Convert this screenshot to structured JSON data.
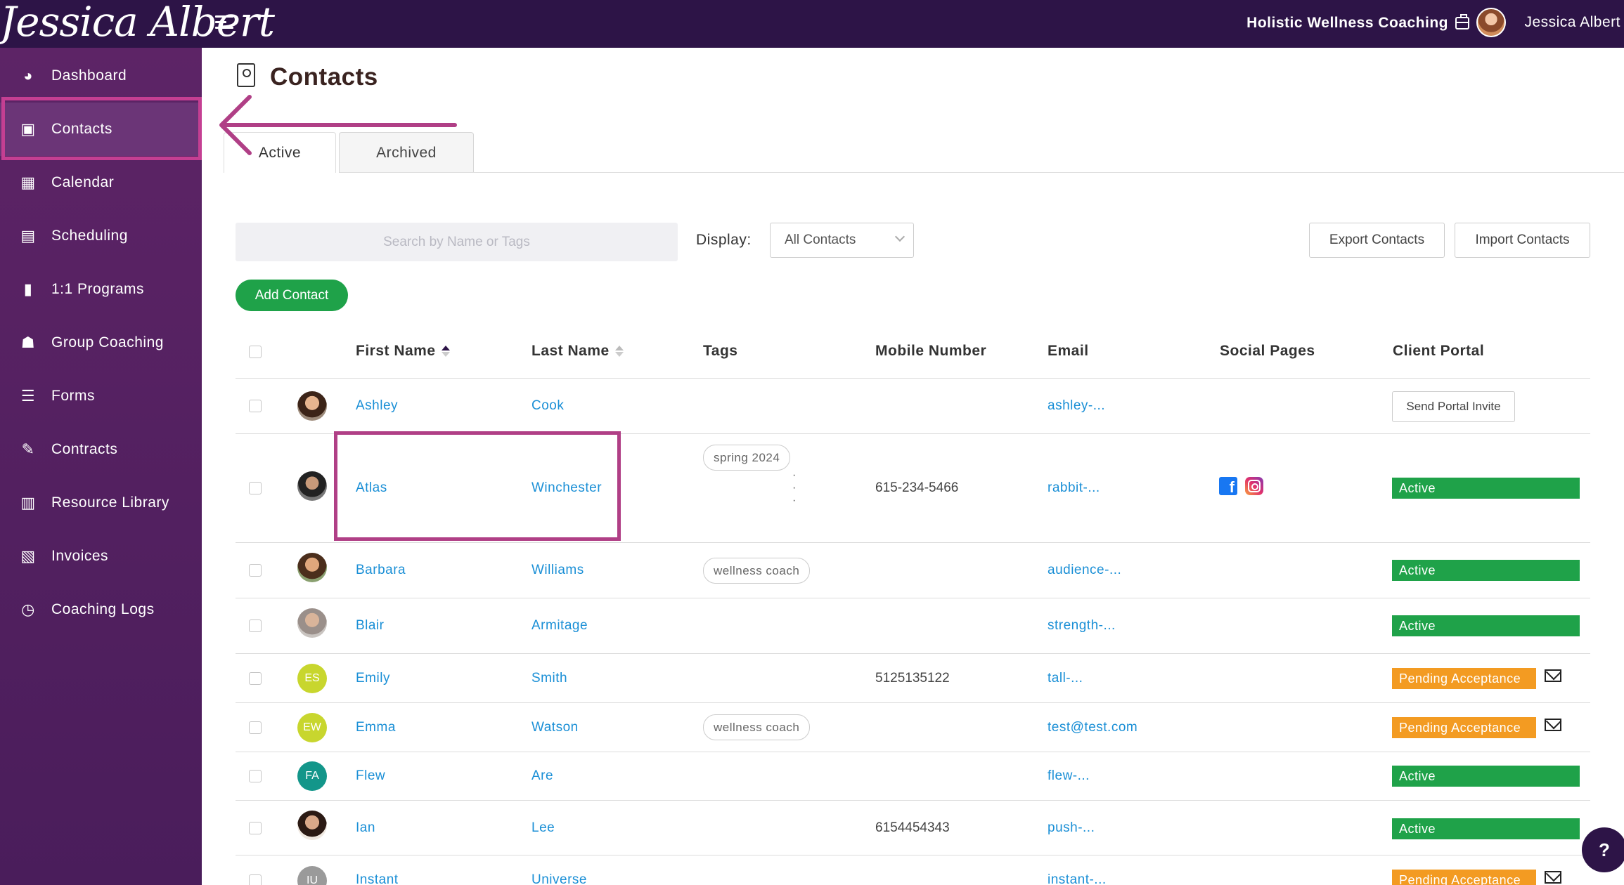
{
  "app": {
    "logo_text": "Jessica Albert",
    "business_name": "Holistic Wellness Coaching",
    "user_name": "Jessica Albert"
  },
  "sidebar": {
    "items": [
      {
        "label": "Dashboard",
        "icon": "dashboard-icon"
      },
      {
        "label": "Contacts",
        "icon": "contacts-icon"
      },
      {
        "label": "Calendar",
        "icon": "calendar-icon"
      },
      {
        "label": "Scheduling",
        "icon": "scheduling-icon"
      },
      {
        "label": "1:1 Programs",
        "icon": "book-icon"
      },
      {
        "label": "Group Coaching",
        "icon": "group-icon"
      },
      {
        "label": "Forms",
        "icon": "forms-icon"
      },
      {
        "label": "Contracts",
        "icon": "contract-icon"
      },
      {
        "label": "Resource Library",
        "icon": "library-icon"
      },
      {
        "label": "Invoices",
        "icon": "invoice-icon"
      },
      {
        "label": "Coaching Logs",
        "icon": "clock-icon"
      }
    ],
    "active_item": "Contacts"
  },
  "page": {
    "title": "Contacts",
    "tabs": [
      "Active",
      "Archived"
    ],
    "search_placeholder": "Search by Name or Tags",
    "display_label": "Display:",
    "display_value": "All Contacts",
    "export_label": "Export Contacts",
    "import_label": "Import Contacts",
    "add_label": "Add Contact"
  },
  "table": {
    "headers": [
      "First Name",
      "Last Name",
      "Tags",
      "Mobile Number",
      "Email",
      "Social Pages",
      "Client Portal"
    ],
    "rows": [
      {
        "first": "Ashley",
        "last": "Cook",
        "tags": "",
        "mobile": "",
        "email": "ashley-...",
        "portal": "Send Portal Invite"
      },
      {
        "first": "Atlas",
        "last": "Winchester",
        "tags": "spring 2024",
        "mobile": "615-234-5466",
        "email": "rabbit-...",
        "portal": "Active"
      },
      {
        "first": "Barbara",
        "last": "Williams",
        "tags": "wellness coach",
        "mobile": "",
        "email": "audience-...",
        "portal": "Active"
      },
      {
        "first": "Blair",
        "last": "Armitage",
        "tags": "",
        "mobile": "",
        "email": "strength-...",
        "portal": "Active"
      },
      {
        "first": "Emily",
        "last": "Smith",
        "initials": "ES",
        "tags": "",
        "mobile": "5125135122",
        "email": "tall-...",
        "portal": "Pending Acceptance"
      },
      {
        "first": "Emma",
        "last": "Watson",
        "initials": "EW",
        "tags": "wellness coach",
        "mobile": "",
        "email": "test@test.com",
        "portal": "Pending Acceptance"
      },
      {
        "first": "Flew",
        "last": "Are",
        "initials": "FA",
        "tags": "",
        "mobile": "",
        "email": "flew-...",
        "portal": "Active"
      },
      {
        "first": "Ian",
        "last": "Lee",
        "tags": "",
        "mobile": "6154454343",
        "email": "push-...",
        "portal": "Active"
      },
      {
        "first": "Instant",
        "last": "Universe",
        "initials": "IU",
        "tags": "",
        "mobile": "",
        "email": "instant-...",
        "portal": "Pending Acceptance"
      }
    ]
  },
  "help_label": "?",
  "colors": {
    "topbar": "#2d1447",
    "sidebar": "#5d2466",
    "highlight": "#c43f92",
    "link": "#1a8fd6",
    "active_status": "#1fa249",
    "pending_status": "#f39b22"
  }
}
